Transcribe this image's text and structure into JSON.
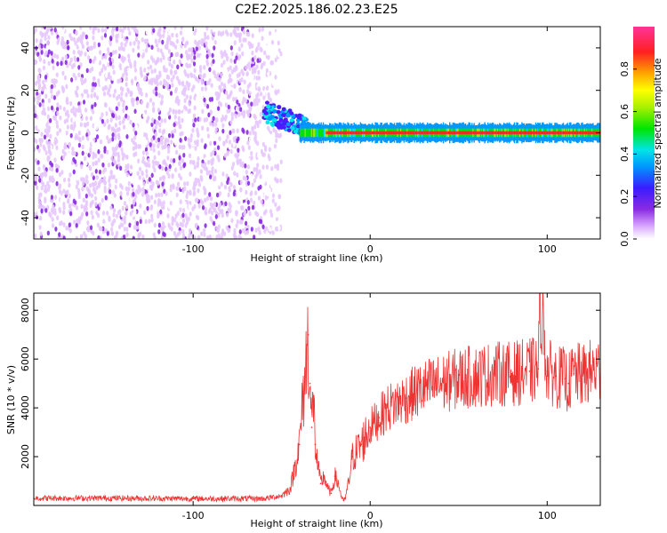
{
  "figure": {
    "title": "C2E2.2025.186.02.23.E25"
  },
  "chart_data": [
    {
      "type": "heatmap",
      "xlabel": "Height of straight line (km)",
      "ylabel": "Frequency (Hz)",
      "xlim": [
        -190,
        130
      ],
      "ylim": [
        -50,
        50
      ],
      "xticks": [
        -100,
        0,
        100
      ],
      "yticks": [
        -40,
        -20,
        0,
        20,
        40
      ],
      "grid": false,
      "colorbar": {
        "label": "Normalized spectral amplitude",
        "range": [
          0.0,
          1.0
        ],
        "ticks": [
          "0.0",
          "0.2",
          "0.4",
          "0.6",
          "0.8"
        ],
        "colormap": "rainbow (white-purple-blue-cyan-green-yellow-orange-red-pink)"
      },
      "regions": [
        {
          "x_from": -190,
          "x_to": -50,
          "description": "broadband noise across all frequencies",
          "amplitude": 0.12
        },
        {
          "x_from": -60,
          "x_to": -40,
          "center_hz": 8,
          "description": "signal appears",
          "amplitude": 0.45
        },
        {
          "x_from": -40,
          "x_to": 130,
          "center_hz": 0,
          "description": "narrow band near 0 Hz",
          "amplitude": 0.95
        }
      ]
    },
    {
      "type": "line",
      "xlabel": "Height of straight line (km)",
      "ylabel": "SNR (10 * v/v)",
      "xlim": [
        -190,
        130
      ],
      "ylim": [
        0,
        8700
      ],
      "xticks": [
        -100,
        0,
        100
      ],
      "yticks": [
        2000,
        4000,
        6000,
        8000
      ],
      "grid": false,
      "series": [
        {
          "color": "#ee3333",
          "x": [
            -190,
            -150,
            -100,
            -60,
            -50,
            -45,
            -40,
            -36,
            -35,
            -34,
            -33,
            -32,
            -31,
            -30,
            -28,
            -26,
            -24,
            -22,
            -20,
            -18,
            -16,
            -15,
            -14,
            -12,
            -10,
            -5,
            0,
            5,
            10,
            20,
            30,
            40,
            50,
            60,
            70,
            80,
            90,
            95,
            96,
            100,
            105,
            110,
            112,
            115,
            120,
            125,
            130
          ],
          "y": [
            300,
            300,
            280,
            280,
            400,
            700,
            2500,
            6000,
            7000,
            5000,
            3200,
            4500,
            2500,
            1800,
            900,
            1200,
            700,
            500,
            1200,
            900,
            300,
            200,
            300,
            1000,
            2000,
            2500,
            3200,
            3600,
            4000,
            4400,
            4800,
            5000,
            5200,
            5300,
            5400,
            5400,
            5500,
            5600,
            8700,
            5500,
            5300,
            5200,
            5000,
            5400,
            5300,
            5500,
            5600
          ]
        }
      ]
    }
  ]
}
